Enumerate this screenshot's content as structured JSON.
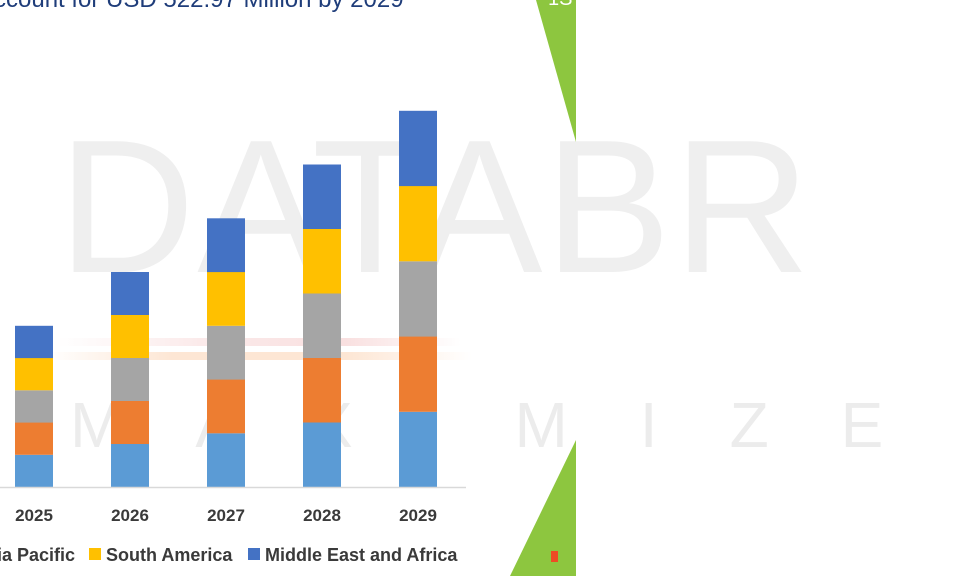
{
  "header": {
    "title": "ccount for USD 522.97 Million by 2029",
    "corner": "1S"
  },
  "watermark": {
    "brand": "DATABR",
    "sub": "MAXIMIZE"
  },
  "colors": {
    "background_accent": "#8dc63f",
    "title": "#1f3d7a",
    "text": "#3a3a3a",
    "axis": "#d9d9d9"
  },
  "chart_data": {
    "type": "bar",
    "stacked": true,
    "title": "ccount for USD 522.97 Million by 2029",
    "xlabel": "",
    "ylabel": "",
    "ylim": [
      0,
      350
    ],
    "grid": false,
    "legend_position": "bottom",
    "categories": [
      "2025",
      "2026",
      "2027",
      "2028",
      "2029"
    ],
    "series": [
      {
        "name": "",
        "color": "#5b9bd5",
        "values": [
          30,
          40,
          50,
          60,
          70
        ]
      },
      {
        "name": "",
        "color": "#ed7d31",
        "values": [
          30,
          40,
          50,
          60,
          70
        ]
      },
      {
        "name": "",
        "color": "#a5a5a5",
        "values": [
          30,
          40,
          50,
          60,
          70
        ]
      },
      {
        "name": "South America",
        "color": "#ffc000",
        "values": [
          30,
          40,
          50,
          60,
          70
        ]
      },
      {
        "name": "Middle East and Africa",
        "color": "#4472c4",
        "values": [
          30,
          40,
          50,
          60,
          70
        ]
      }
    ],
    "legend_items": [
      {
        "label": "ia Pacific",
        "color": "#a5a5a5"
      },
      {
        "label": "South America",
        "color": "#ffc000"
      },
      {
        "label": "Middle East and Africa",
        "color": "#4472c4"
      }
    ]
  }
}
